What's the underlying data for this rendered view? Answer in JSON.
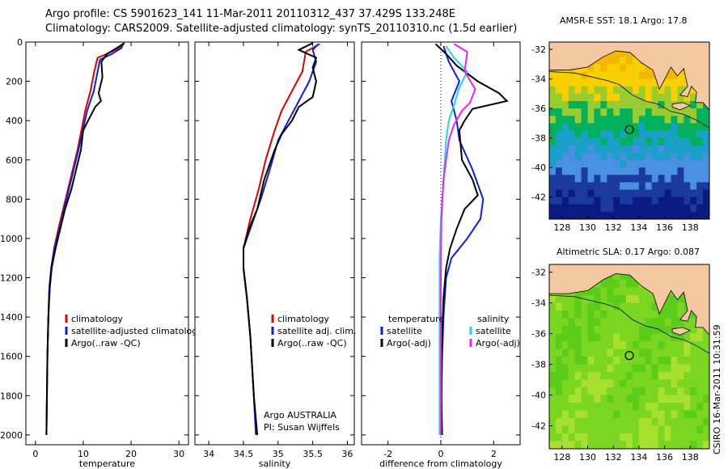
{
  "header": {
    "line1": "Argo profile: CS 5901623_141 11-Mar-2011 20110312_437 37.429S 133.248E",
    "line2": "Climatology: CARS2009. Satellite-adjusted climatology: synTS_20110310.nc (1.5d earlier)"
  },
  "stamp": "CSIRO 16-Mar-2011 10:31:59",
  "colors": {
    "climatology": "#e00000",
    "satellite": "#0a1ee6",
    "argo": "#000000",
    "salinity_satellite": "#19d8f0",
    "salinity_argo": "#ee22ee",
    "land": "#f4c8a0"
  },
  "chart_data": [
    {
      "type": "line",
      "xlabel": "temperature",
      "ylabel": "",
      "xlim": [
        -2,
        32
      ],
      "ylim": [
        2050,
        0
      ],
      "xticks": [
        0,
        10,
        20,
        30
      ],
      "yticks": [
        0,
        200,
        400,
        600,
        800,
        1000,
        1200,
        1400,
        1600,
        1800,
        2000
      ],
      "legend": [
        "climatology",
        "satellite-adjusted climatology",
        "Argo(..raw -QC)"
      ],
      "series": [
        {
          "name": "climatology",
          "color": "climatology",
          "points": [
            [
              18.5,
              10
            ],
            [
              17.5,
              30
            ],
            [
              15,
              60
            ],
            [
              13,
              80
            ],
            [
              12.3,
              150
            ],
            [
              11.5,
              250
            ],
            [
              10.4,
              350
            ],
            [
              9.6,
              450
            ],
            [
              8.8,
              550
            ],
            [
              7.8,
              650
            ],
            [
              6.8,
              750
            ],
            [
              5.8,
              850
            ],
            [
              4.8,
              950
            ],
            [
              3.9,
              1050
            ],
            [
              3.3,
              1150
            ],
            [
              2.9,
              1250
            ],
            [
              2.7,
              1400
            ],
            [
              2.5,
              1600
            ],
            [
              2.4,
              1800
            ],
            [
              2.3,
              2000
            ]
          ]
        },
        {
          "name": "satellite-adjusted climatology",
          "color": "satellite",
          "points": [
            [
              18.3,
              10
            ],
            [
              18,
              30
            ],
            [
              16,
              60
            ],
            [
              13.5,
              90
            ],
            [
              13,
              150
            ],
            [
              12.2,
              250
            ],
            [
              10.8,
              350
            ],
            [
              9.9,
              450
            ],
            [
              9,
              550
            ],
            [
              8,
              650
            ],
            [
              7,
              750
            ],
            [
              6,
              850
            ],
            [
              5,
              950
            ],
            [
              4,
              1050
            ],
            [
              3.3,
              1150
            ],
            [
              2.9,
              1250
            ],
            [
              2.7,
              1400
            ],
            [
              2.5,
              1600
            ],
            [
              2.4,
              1800
            ],
            [
              2.3,
              2000
            ]
          ]
        },
        {
          "name": "Argo(..raw -QC)",
          "color": "argo",
          "points": [
            [
              18.6,
              5
            ],
            [
              17,
              30
            ],
            [
              15,
              60
            ],
            [
              13.8,
              100
            ],
            [
              14,
              180
            ],
            [
              13.2,
              260
            ],
            [
              13.7,
              300
            ],
            [
              12.5,
              330
            ],
            [
              11,
              400
            ],
            [
              10,
              450
            ],
            [
              9.5,
              550
            ],
            [
              8.5,
              650
            ],
            [
              7.5,
              750
            ],
            [
              6.2,
              850
            ],
            [
              5.2,
              950
            ],
            [
              4.2,
              1050
            ],
            [
              3.4,
              1150
            ],
            [
              3,
              1250
            ],
            [
              2.7,
              1400
            ],
            [
              2.5,
              1600
            ],
            [
              2.4,
              1800
            ],
            [
              2.3,
              2000
            ]
          ]
        }
      ]
    },
    {
      "type": "line",
      "xlabel": "salinity",
      "ylabel": "",
      "xlim": [
        33.8,
        36.1
      ],
      "ylim": [
        2050,
        0
      ],
      "xticks": [
        34,
        34.5,
        35,
        35.5,
        36
      ],
      "xticklabels": [
        "34",
        "34.5",
        "35",
        "35.5",
        "36"
      ],
      "legend": [
        "climatology",
        "satellite adj. clim.",
        "Argo(..raw -QC)"
      ],
      "annotation": [
        "Argo AUSTRALIA",
        "PI: Susan Wijffels"
      ],
      "series": [
        {
          "name": "climatology",
          "color": "climatology",
          "points": [
            [
              35.6,
              10
            ],
            [
              35.4,
              50
            ],
            [
              35.35,
              150
            ],
            [
              35.2,
              250
            ],
            [
              35.05,
              350
            ],
            [
              34.95,
              450
            ],
            [
              34.82,
              600
            ],
            [
              34.72,
              750
            ],
            [
              34.6,
              900
            ],
            [
              34.5,
              1050
            ],
            [
              34.5,
              1150
            ],
            [
              34.55,
              1300
            ],
            [
              34.6,
              1500
            ],
            [
              34.65,
              1800
            ],
            [
              34.68,
              2000
            ]
          ]
        },
        {
          "name": "satellite adj. clim.",
          "color": "satellite",
          "points": [
            [
              35.58,
              10
            ],
            [
              35.5,
              40
            ],
            [
              35.55,
              100
            ],
            [
              35.45,
              200
            ],
            [
              35.3,
              300
            ],
            [
              35.15,
              400
            ],
            [
              35,
              500
            ],
            [
              34.88,
              650
            ],
            [
              34.75,
              800
            ],
            [
              34.6,
              950
            ],
            [
              34.5,
              1050
            ],
            [
              34.5,
              1150
            ],
            [
              34.55,
              1300
            ],
            [
              34.6,
              1500
            ],
            [
              34.65,
              1800
            ],
            [
              34.68,
              2000
            ]
          ]
        },
        {
          "name": "Argo(..raw -QC)",
          "color": "argo",
          "points": [
            [
              35.5,
              5
            ],
            [
              35.3,
              40
            ],
            [
              35.55,
              80
            ],
            [
              35.5,
              130
            ],
            [
              35.55,
              200
            ],
            [
              35.5,
              280
            ],
            [
              35.3,
              330
            ],
            [
              35.2,
              400
            ],
            [
              35.05,
              470
            ],
            [
              34.95,
              550
            ],
            [
              34.8,
              700
            ],
            [
              34.7,
              850
            ],
            [
              34.58,
              950
            ],
            [
              34.5,
              1050
            ],
            [
              34.5,
              1150
            ],
            [
              34.55,
              1300
            ],
            [
              34.6,
              1500
            ],
            [
              34.65,
              1800
            ],
            [
              34.7,
              2000
            ]
          ]
        }
      ]
    },
    {
      "type": "line",
      "xlabel": "difference from climatology",
      "ylabel": "",
      "xlim": [
        -3,
        3
      ],
      "ylim": [
        2050,
        0
      ],
      "xticks": [
        -2,
        0,
        2
      ],
      "xticklabels": [
        "-2",
        "0",
        "2"
      ],
      "legend_groups": [
        {
          "heading": "temperature",
          "entries": [
            "satellite",
            "Argo(-adj)"
          ]
        },
        {
          "heading": "salinity",
          "entries": [
            "satellite",
            "Argo(-adj)"
          ]
        }
      ],
      "series": [
        {
          "name": "temperature satellite",
          "color": "satellite",
          "points": [
            [
              0.1,
              20
            ],
            [
              0.3,
              100
            ],
            [
              0.7,
              200
            ],
            [
              0.4,
              300
            ],
            [
              0.6,
              400
            ],
            [
              0.7,
              500
            ],
            [
              1.2,
              650
            ],
            [
              1.6,
              800
            ],
            [
              1.5,
              900
            ],
            [
              1,
              1000
            ],
            [
              0.4,
              1100
            ],
            [
              0.2,
              1200
            ],
            [
              0.1,
              1400
            ],
            [
              0.05,
              1600
            ],
            [
              0.02,
              1800
            ],
            [
              0,
              2000
            ]
          ]
        },
        {
          "name": "temperature Argo(-adj)",
          "color": "argo",
          "points": [
            [
              -0.2,
              10
            ],
            [
              0.2,
              60
            ],
            [
              0.6,
              120
            ],
            [
              1.4,
              200
            ],
            [
              2.2,
              260
            ],
            [
              2.5,
              300
            ],
            [
              1.2,
              340
            ],
            [
              0.9,
              400
            ],
            [
              0.7,
              450
            ],
            [
              0.8,
              600
            ],
            [
              1.2,
              700
            ],
            [
              1.4,
              780
            ],
            [
              0.9,
              850
            ],
            [
              0.6,
              950
            ],
            [
              0.35,
              1050
            ],
            [
              0.2,
              1150
            ],
            [
              0.1,
              1300
            ],
            [
              0.05,
              1500
            ],
            [
              0.02,
              1800
            ],
            [
              0.05,
              2000
            ]
          ]
        },
        {
          "name": "salinity satellite",
          "color": "salinity_satellite",
          "points": [
            [
              0.2,
              20
            ],
            [
              0.5,
              80
            ],
            [
              1,
              150
            ],
            [
              0.7,
              230
            ],
            [
              0.5,
              320
            ],
            [
              0.3,
              400
            ],
            [
              0.2,
              500
            ],
            [
              0.15,
              600
            ],
            [
              0.1,
              700
            ],
            [
              0,
              900
            ],
            [
              -0.05,
              1100
            ],
            [
              -0.05,
              1400
            ],
            [
              -0.05,
              1800
            ],
            [
              -0.05,
              2000
            ]
          ]
        },
        {
          "name": "salinity Argo(-adj)",
          "color": "salinity_argo",
          "points": [
            [
              0.5,
              10
            ],
            [
              1,
              50
            ],
            [
              0.9,
              150
            ],
            [
              1.3,
              240
            ],
            [
              1.1,
              310
            ],
            [
              0.8,
              350
            ],
            [
              0.5,
              420
            ],
            [
              0.3,
              500
            ],
            [
              0.2,
              600
            ],
            [
              0.1,
              700
            ],
            [
              0.02,
              900
            ],
            [
              0,
              1200
            ],
            [
              0,
              1600
            ],
            [
              0,
              2000
            ]
          ]
        }
      ]
    },
    {
      "type": "heatmap",
      "title": "AMSR-E SST: 18.1  Argo: 17.8",
      "xlim": [
        127,
        139.5
      ],
      "ylim": [
        -43.5,
        -31.5
      ],
      "xticks": [
        128,
        130,
        132,
        134,
        136,
        138
      ],
      "yticks": [
        -32,
        -34,
        -36,
        -38,
        -40,
        -42
      ],
      "marker": [
        133.25,
        -37.43
      ],
      "color_bands": [
        "#f2b800",
        "#f8d000",
        "#9acc30",
        "#00b05a",
        "#1aa0c8",
        "#4a90e0",
        "#1a3aa0",
        "#0a1a80"
      ]
    },
    {
      "type": "heatmap",
      "title": "Altimetric SLA: 0.17  Argo: 0.087",
      "xlim": [
        127,
        139.5
      ],
      "ylim": [
        -43.5,
        -31.5
      ],
      "xticks": [
        128,
        130,
        132,
        134,
        136,
        138
      ],
      "yticks": [
        -32,
        -34,
        -36,
        -38,
        -40,
        -42
      ],
      "marker": [
        133.25,
        -37.43
      ],
      "color_bands": [
        "#5ccc1a",
        "#7ad620",
        "#a8e030",
        "#c8e838",
        "#e8e840",
        "#f0d040"
      ]
    }
  ]
}
